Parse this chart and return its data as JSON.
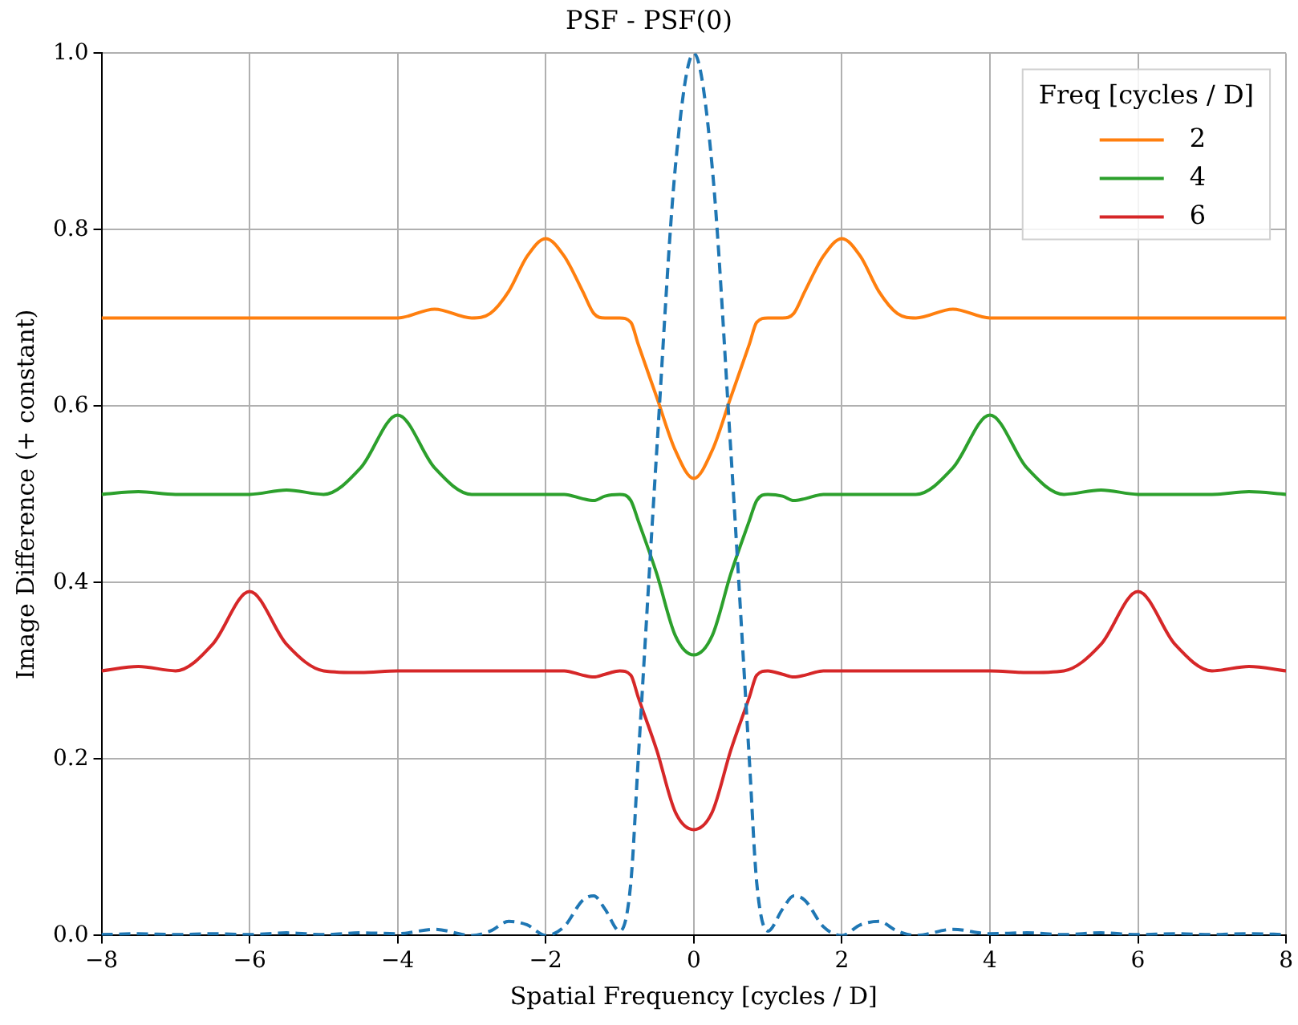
{
  "chart_data": {
    "type": "line",
    "title": "PSF - PSF(0)",
    "xlabel": "Spatial Frequency [cycles / D]",
    "ylabel": "Image Difference (+ constant)",
    "legend_title": "Freq [cycles / D]",
    "legend": "top right",
    "grid": true,
    "marker": "none",
    "xlim": [
      -8,
      8
    ],
    "ylim": [
      0,
      1
    ],
    "xticks": [
      {
        "value": -8,
        "label": "−8"
      },
      {
        "value": -6,
        "label": "−6"
      },
      {
        "value": -4,
        "label": "−4"
      },
      {
        "value": -2,
        "label": "−2"
      },
      0,
      2,
      4,
      6,
      8
    ],
    "yticks": [
      {
        "value": 0,
        "label": "0.0"
      },
      0.2,
      0.4,
      0.6,
      0.8,
      {
        "value": 1,
        "label": "1.0"
      }
    ],
    "x": [
      -8,
      -7.5,
      -7,
      -6.5,
      -6,
      -5.5,
      -5,
      -4.5,
      -4,
      -3.5,
      -3,
      -2.75,
      -2.5,
      -2.25,
      -2,
      -1.75,
      -1.5,
      -1.35,
      -1.2,
      -1,
      -0.85,
      -0.75,
      -0.5,
      -0.25,
      0,
      0.25,
      0.5,
      0.75,
      0.85,
      1,
      1.2,
      1.35,
      1.5,
      1.75,
      2,
      2.25,
      2.5,
      2.75,
      3,
      3.5,
      4,
      4.5,
      5,
      5.5,
      6,
      6.5,
      7,
      7.5,
      8
    ],
    "series": [
      {
        "color": "#1f77b4",
        "line_style": "dashed",
        "values": [
          0.001,
          0.002,
          0.001,
          0.002,
          0.001,
          0.003,
          0.001,
          0.003,
          0.002,
          0.007,
          0.0,
          0.005,
          0.016,
          0.012,
          0.0,
          0.01,
          0.04,
          0.045,
          0.03,
          0.005,
          0.06,
          0.2,
          0.55,
          0.87,
          1.0,
          0.87,
          0.55,
          0.2,
          0.06,
          0.005,
          0.03,
          0.045,
          0.04,
          0.01,
          0.0,
          0.012,
          0.016,
          0.005,
          0.0,
          0.007,
          0.002,
          0.003,
          0.001,
          0.003,
          0.001,
          0.002,
          0.001,
          0.002,
          0.001
        ]
      },
      {
        "name": "2",
        "color": "#ff7f0e",
        "line_style": "solid",
        "values": [
          0.7,
          0.7,
          0.7,
          0.7,
          0.7,
          0.7,
          0.7,
          0.7,
          0.7,
          0.71,
          0.7,
          0.705,
          0.73,
          0.77,
          0.79,
          0.77,
          0.73,
          0.705,
          0.7,
          0.7,
          0.695,
          0.67,
          0.61,
          0.55,
          0.518,
          0.55,
          0.61,
          0.67,
          0.695,
          0.7,
          0.7,
          0.705,
          0.73,
          0.77,
          0.79,
          0.77,
          0.73,
          0.705,
          0.7,
          0.71,
          0.7,
          0.7,
          0.7,
          0.7,
          0.7,
          0.7,
          0.7,
          0.7,
          0.7
        ]
      },
      {
        "name": "4",
        "color": "#2ca02c",
        "line_style": "solid",
        "values": [
          0.5,
          0.503,
          0.5,
          0.5,
          0.5,
          0.505,
          0.5,
          0.53,
          0.59,
          0.53,
          0.5,
          0.5,
          0.5,
          0.5,
          0.5,
          0.5,
          0.495,
          0.493,
          0.498,
          0.5,
          0.493,
          0.47,
          0.41,
          0.34,
          0.318,
          0.34,
          0.41,
          0.47,
          0.493,
          0.5,
          0.498,
          0.493,
          0.495,
          0.5,
          0.5,
          0.5,
          0.5,
          0.5,
          0.5,
          0.53,
          0.59,
          0.53,
          0.5,
          0.505,
          0.5,
          0.5,
          0.5,
          0.503,
          0.5
        ]
      },
      {
        "name": "6",
        "color": "#d62728",
        "line_style": "solid",
        "values": [
          0.3,
          0.305,
          0.3,
          0.33,
          0.39,
          0.33,
          0.3,
          0.298,
          0.3,
          0.3,
          0.3,
          0.3,
          0.3,
          0.3,
          0.3,
          0.3,
          0.295,
          0.293,
          0.296,
          0.3,
          0.295,
          0.27,
          0.21,
          0.14,
          0.12,
          0.14,
          0.21,
          0.27,
          0.295,
          0.3,
          0.296,
          0.293,
          0.295,
          0.3,
          0.3,
          0.3,
          0.3,
          0.3,
          0.3,
          0.3,
          0.3,
          0.298,
          0.3,
          0.33,
          0.39,
          0.33,
          0.3,
          0.305,
          0.3
        ]
      }
    ]
  }
}
